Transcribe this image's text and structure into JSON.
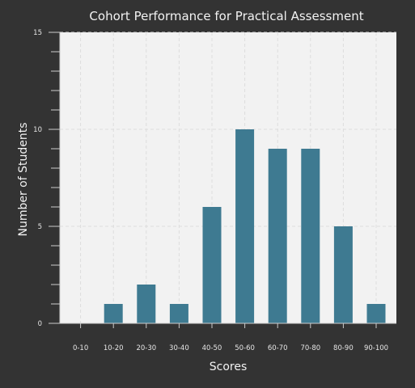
{
  "chart_data": {
    "type": "bar",
    "title": "Cohort Performance for Practical Assessment",
    "xlabel": "Scores",
    "ylabel": "Number of Students",
    "categories": [
      "0-10",
      "10-20",
      "20-30",
      "30-40",
      "40-50",
      "50-60",
      "60-70",
      "70-80",
      "80-90",
      "90-100"
    ],
    "values": [
      0,
      1,
      2,
      1,
      6,
      10,
      9,
      9,
      5,
      1
    ],
    "ylim": [
      0,
      15
    ],
    "yticks": [
      0,
      5,
      10,
      15
    ],
    "grid": true,
    "colors": {
      "background": "#333333",
      "plot_background": "#f2f2f2",
      "bar": "#3e7a91",
      "grid": "#dddddd",
      "axis": "#cccccc",
      "text": "#f2f2f2"
    }
  }
}
